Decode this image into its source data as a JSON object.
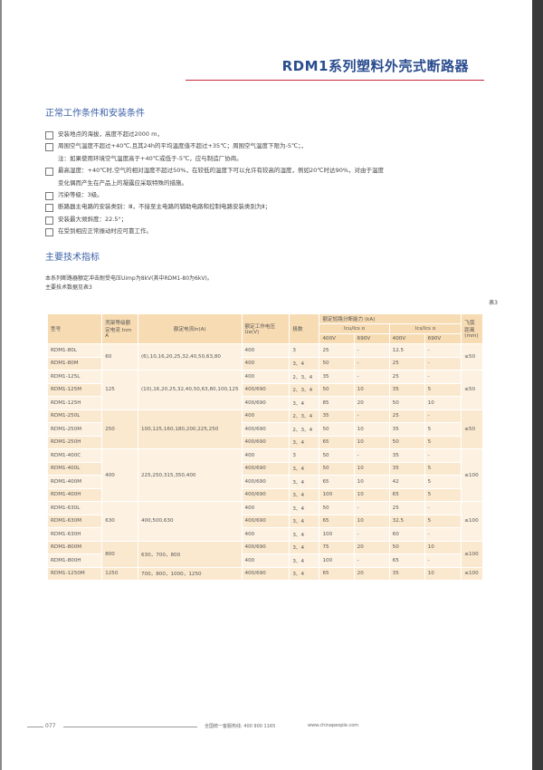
{
  "title": "RDM1系列塑料外壳式断路器",
  "section1": {
    "heading": "正常工作条件和安装条件",
    "items": [
      {
        "text": "安装地点的海拔，高度不超过2000 m，",
        "box": true
      },
      {
        "text": "周围空气温度不超过+40℃,且其24h的平均温度值不超过+35℃；周围空气温度下限为-5℃；，",
        "box": true
      },
      {
        "text": "注：如果使用环境空气温度高于+40℃或低于-5℃，应与制造厂协商。",
        "box": false
      },
      {
        "text": "最高湿度：+40℃时,空气的相对湿度不超过50%，在较低的温度下可以允许有较高的湿度，例如20℃时达90%，对由于温度",
        "box": true
      },
      {
        "text": "变化偶而产生在产品上的凝露应采取特殊的措施。",
        "box": false
      },
      {
        "text": "污染等级：3级。",
        "box": true
      },
      {
        "text": "断路器主电路的安装类别：Ⅲ，不接至主电路的辅助电路和控制电路安装类别为Ⅱ；",
        "box": true
      },
      {
        "text": "安装最大倾斜度：22.5°；",
        "box": true
      },
      {
        "text": "在受到相应正常振动时应可靠工作。",
        "box": true
      }
    ]
  },
  "section2": {
    "heading": "主要技术指标",
    "intro": [
      "本系列断路器额定冲击耐受电压Uimp为8kV(其中RDM1-80为6kV)。",
      "主要技术数据见表3"
    ],
    "table_no": "表3"
  },
  "table": {
    "headers": {
      "model": "型号",
      "frame": "壳架等级额定电流 Inm A",
      "trip": "额定电流In(A)",
      "voltage": "额定工作电压Ue(V)",
      "poles": "极数",
      "breaking": "额定短路分断能力 (kA)",
      "icu": "Icu/Ics o",
      "ics": "Ics/Ics o",
      "v400a": "400V",
      "v690a": "690V",
      "v400b": "400V",
      "v690b": "690V",
      "fly": "飞弧距离(mm)"
    },
    "groups": [
      {
        "frame": "60",
        "trip": "(6),10,16,20,25,32,40,50,63,80",
        "fly": "≤50",
        "rows": [
          [
            "RDM1-80L",
            "400",
            "3",
            "25",
            "-",
            "12.5",
            "-"
          ],
          [
            "RDM1-80M",
            "400",
            "3、4",
            "50",
            "-",
            "25",
            "-"
          ]
        ]
      },
      {
        "frame": "125",
        "trip": "(10),16,20,25,32,40,50,63,80,100,125",
        "fly": "≤50",
        "rows": [
          [
            "RDM1-125L",
            "400",
            "2、3、4",
            "35",
            "-",
            "25",
            "-"
          ],
          [
            "RDM1-125M",
            "400/690",
            "2、3、4",
            "50",
            "10",
            "35",
            "5"
          ],
          [
            "RDM1-125H",
            "400/690",
            "3、4",
            "85",
            "20",
            "50",
            "10"
          ]
        ]
      },
      {
        "frame": "250",
        "trip": "100,125,160,180,200,225,250",
        "fly": "≤50",
        "rows": [
          [
            "RDM1-250L",
            "400",
            "2、3、4",
            "35",
            "-",
            "25",
            "-"
          ],
          [
            "RDM1-250M",
            "400/690",
            "2、3、4",
            "50",
            "10",
            "35",
            "5"
          ],
          [
            "RDM1-250H",
            "400/690",
            "3、4",
            "65",
            "10",
            "50",
            "5"
          ]
        ]
      },
      {
        "frame": "400",
        "trip": "225,250,315,350,400",
        "fly": "≤100",
        "rows": [
          [
            "RDM1-400C",
            "400",
            "3",
            "50",
            "-",
            "35",
            "-"
          ],
          [
            "RDM1-400L",
            "400/690",
            "3、4",
            "50",
            "10",
            "35",
            "5"
          ],
          [
            "RDM1-400M",
            "400/690",
            "3、4",
            "65",
            "10",
            "42",
            "5"
          ],
          [
            "RDM1-400H",
            "400/690",
            "3、4",
            "100",
            "10",
            "65",
            "5"
          ]
        ]
      },
      {
        "frame": "630",
        "trip": "400,500,630",
        "fly": "≤100",
        "rows": [
          [
            "RDM1-630L",
            "400",
            "3、4",
            "50",
            "-",
            "25",
            "-"
          ],
          [
            "RDM1-630M",
            "400/690",
            "3、4",
            "65",
            "10",
            "32.5",
            "5"
          ],
          [
            "RDM1-630H",
            "400",
            "3、4",
            "100",
            "-",
            "60",
            "-"
          ]
        ]
      },
      {
        "frame": "800",
        "trip": "630，700，800",
        "fly": "≤100",
        "rows": [
          [
            "RDM1-800M",
            "400/690",
            "3、4",
            "75",
            "20",
            "50",
            "10"
          ],
          [
            "RDM1-800H",
            "400",
            "3、4",
            "100",
            "-",
            "65",
            "-"
          ]
        ]
      },
      {
        "frame": "1250",
        "trip": "700，800，1000，1250",
        "fly": "≤100",
        "rows": [
          [
            "RDM1-1250M",
            "400/690",
            "3、4",
            "65",
            "20",
            "35",
            "10"
          ]
        ]
      }
    ]
  },
  "footer": {
    "page": "077",
    "hotline": "全国统一客服热线: 400 900 1165",
    "website": "www.chinapeople.com"
  },
  "colors": {
    "title": "#2a4d8f",
    "rule": "#c8283c",
    "header_bg": "#f7dbb2"
  }
}
